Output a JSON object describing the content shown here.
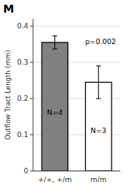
{
  "chart_data": {
    "type": "bar",
    "title": "M",
    "ylabel": "Outflow Tract Length (mm)",
    "categories": [
      "+/+, +/m",
      "m/m"
    ],
    "values": [
      0.355,
      0.245
    ],
    "errors": [
      0.018,
      0.045
    ],
    "colors": [
      "#808080",
      "#ffffff"
    ],
    "n_labels": [
      "N=4",
      "N=3"
    ],
    "annotations": [
      "p=0.002"
    ],
    "ylim": [
      0,
      0.42
    ],
    "yticks": [
      0,
      0.1,
      0.2,
      0.3,
      0.4
    ],
    "grid": true
  }
}
